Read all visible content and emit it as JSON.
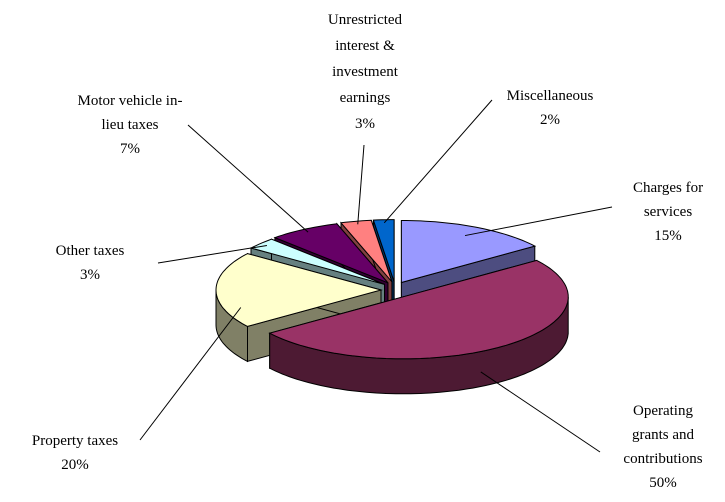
{
  "chart_data": {
    "type": "pie3d",
    "categories": [
      "Charges for services",
      "Operating grants and contributions",
      "Property taxes",
      "Other taxes",
      "Motor vehicle in-lieu taxes",
      "Unrestricted interest & investment earnings",
      "Miscellaneous"
    ],
    "values": [
      15,
      50,
      20,
      3,
      7,
      3,
      2
    ],
    "value_labels": [
      "15%",
      "50%",
      "20%",
      "3%",
      "7%",
      "3%",
      "2%"
    ],
    "colors": [
      "#9999ff",
      "#993366",
      "#ffffcc",
      "#ccffff",
      "#660066",
      "#ff8080",
      "#0066cc"
    ]
  }
}
